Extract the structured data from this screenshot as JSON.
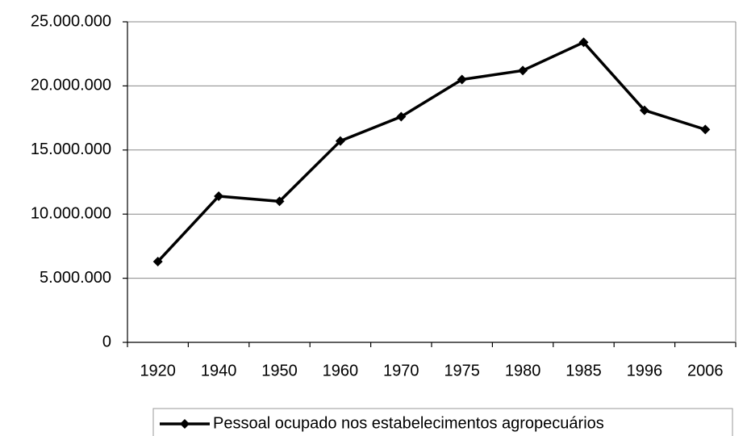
{
  "chart_data": {
    "type": "line",
    "categories": [
      "1920",
      "1940",
      "1950",
      "1960",
      "1970",
      "1975",
      "1980",
      "1985",
      "1996",
      "2006"
    ],
    "series": [
      {
        "name": "Pessoal ocupado nos estabelecimentos agropecuários",
        "color": "#000000",
        "values": [
          6300000,
          11400000,
          11000000,
          15700000,
          17600000,
          20500000,
          21200000,
          23400000,
          18100000,
          16600000
        ]
      }
    ],
    "ylim": [
      0,
      25000000
    ],
    "yticks": [
      0,
      {
        "value": 5000000,
        "label": "5.000.000"
      },
      {
        "value": 10000000,
        "label": "10.000.000"
      },
      {
        "value": 15000000,
        "label": "15.000.000"
      },
      {
        "value": 20000000,
        "label": "20.000.000"
      },
      {
        "value": 25000000,
        "label": "25.000.000"
      }
    ],
    "grid": true,
    "legend": "bottom"
  }
}
